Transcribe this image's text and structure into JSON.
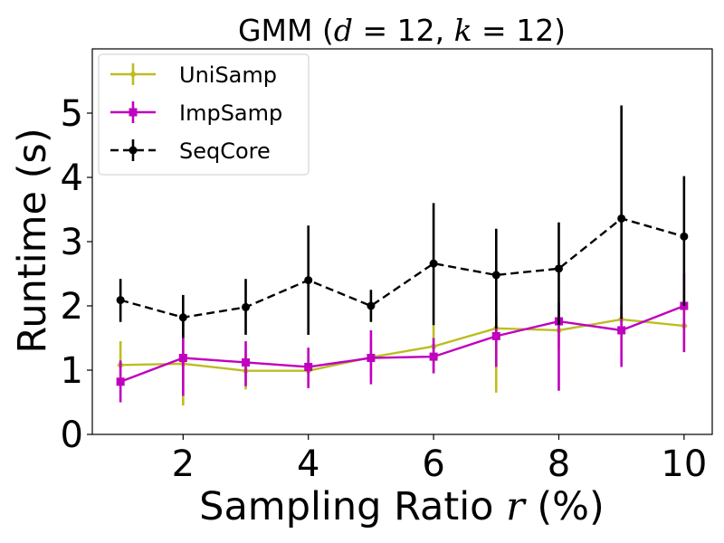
{
  "chart_data": {
    "type": "line",
    "title_prefix": "GMM (",
    "title_d": "d",
    "title_mid": " = 12, ",
    "title_k": "k",
    "title_suffix": " = 12)",
    "xlabel_prefix": "Sampling Ratio ",
    "xlabel_var": "r",
    "xlabel_suffix": " (%)",
    "ylabel": "Runtime (s)",
    "xlim": [
      0.55,
      10.45
    ],
    "ylim": [
      0,
      6
    ],
    "xticks": [
      2,
      4,
      6,
      8,
      10
    ],
    "yticks": [
      0,
      1,
      2,
      3,
      4,
      5
    ],
    "grid": false,
    "legend_position": "top-left",
    "x": [
      1,
      2,
      3,
      4,
      5,
      6,
      7,
      8,
      9,
      10
    ],
    "series": [
      {
        "name": "UniSamp",
        "color": "#bcbd22",
        "marker": "diamond",
        "dash": "solid",
        "values": [
          1.08,
          1.1,
          0.99,
          0.99,
          1.2,
          1.37,
          1.65,
          1.62,
          1.79,
          1.69
        ],
        "err_low": [
          0.75,
          0.45,
          0.7,
          0.75,
          0.9,
          0.95,
          0.65,
          1.35,
          1.55,
          1.3
        ],
        "err_high": [
          1.45,
          1.75,
          1.3,
          1.2,
          1.45,
          1.72,
          1.9,
          1.9,
          2.05,
          2.05
        ]
      },
      {
        "name": "ImpSamp",
        "color": "#bf00bf",
        "marker": "square",
        "dash": "solid",
        "values": [
          0.82,
          1.19,
          1.12,
          1.05,
          1.19,
          1.21,
          1.53,
          1.76,
          1.62,
          2.0
        ],
        "err_low": [
          0.5,
          0.6,
          0.75,
          0.72,
          0.78,
          0.95,
          1.05,
          0.68,
          1.05,
          1.28
        ],
        "err_high": [
          1.15,
          1.8,
          1.45,
          1.35,
          1.62,
          1.5,
          1.85,
          2.05,
          2.0,
          2.5
        ]
      },
      {
        "name": "SeqCore",
        "color": "#000000",
        "marker": "circle",
        "dash": "dashed",
        "values": [
          2.09,
          1.82,
          1.98,
          2.4,
          2.0,
          2.66,
          2.48,
          2.58,
          3.36,
          3.08
        ],
        "err_low": [
          1.75,
          1.5,
          1.55,
          1.55,
          1.75,
          1.7,
          1.65,
          1.7,
          1.8,
          2.0
        ],
        "err_high": [
          2.42,
          2.17,
          2.42,
          3.25,
          2.25,
          3.6,
          3.2,
          3.3,
          5.12,
          4.02
        ]
      }
    ]
  }
}
